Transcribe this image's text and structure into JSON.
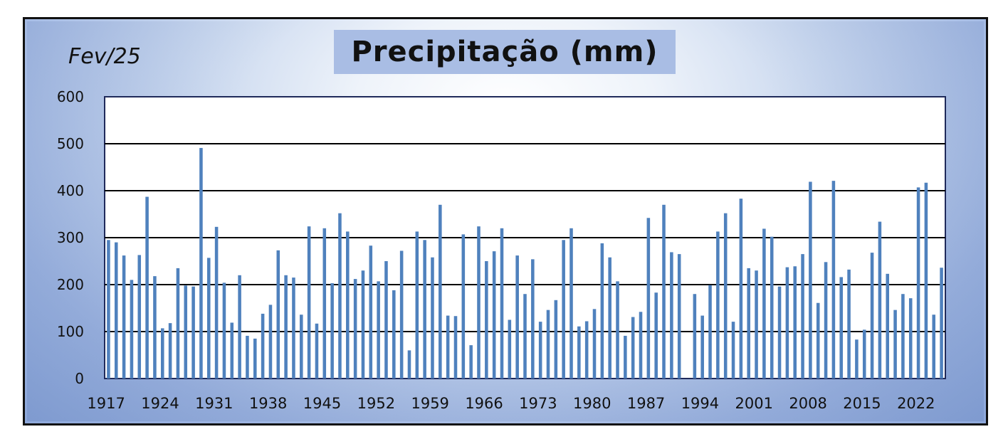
{
  "chart_data": {
    "type": "bar",
    "title": "Precipitação (mm)",
    "subtitle": "Fev/25",
    "xlabel": "",
    "ylabel": "",
    "ylim": [
      0,
      600
    ],
    "yticks": [
      0,
      100,
      200,
      300,
      400,
      500,
      600
    ],
    "grid": true,
    "legend": "none",
    "bar_color": "#4f81bd",
    "x_tick_labels": [
      "1917",
      "1924",
      "1931",
      "1938",
      "1945",
      "1952",
      "1959",
      "1966",
      "1973",
      "1980",
      "1987",
      "1994",
      "2001",
      "2008",
      "2015",
      "2022"
    ],
    "categories": [
      "1917",
      "1918",
      "1919",
      "1920",
      "1921",
      "1922",
      "1923",
      "1924",
      "1925",
      "1926",
      "1927",
      "1928",
      "1929",
      "1930",
      "1931",
      "1932",
      "1933",
      "1934",
      "1935",
      "1936",
      "1937",
      "1938",
      "1939",
      "1940",
      "1941",
      "1942",
      "1943",
      "1944",
      "1945",
      "1946",
      "1947",
      "1948",
      "1949",
      "1950",
      "1951",
      "1952",
      "1953",
      "1954",
      "1955",
      "1956",
      "1957",
      "1958",
      "1959",
      "1960",
      "1961",
      "1962",
      "1963",
      "1964",
      "1965",
      "1966",
      "1967",
      "1968",
      "1969",
      "1970",
      "1971",
      "1972",
      "1973",
      "1974",
      "1975",
      "1976",
      "1977",
      "1978",
      "1979",
      "1980",
      "1981",
      "1982",
      "1983",
      "1984",
      "1985",
      "1986",
      "1987",
      "1988",
      "1989",
      "1990",
      "1991",
      "1992",
      "1993",
      "1994",
      "1995",
      "1996",
      "1997",
      "1998",
      "1999",
      "2000",
      "2001",
      "2002",
      "2003",
      "2004",
      "2005",
      "2006",
      "2007",
      "2008",
      "2009",
      "2010",
      "2011",
      "2012",
      "2013",
      "2014",
      "2015",
      "2016",
      "2017",
      "2018",
      "2019",
      "2020",
      "2021",
      "2022",
      "2023",
      "2024",
      "2025"
    ],
    "values": [
      295,
      290,
      262,
      210,
      263,
      387,
      218,
      107,
      118,
      235,
      198,
      196,
      491,
      257,
      323,
      204,
      119,
      220,
      91,
      85,
      138,
      157,
      273,
      220,
      215,
      136,
      324,
      117,
      320,
      203,
      352,
      313,
      212,
      230,
      283,
      207,
      250,
      188,
      272,
      60,
      313,
      295,
      258,
      370,
      134,
      133,
      307,
      71,
      324,
      250,
      271,
      320,
      125,
      262,
      180,
      254,
      121,
      146,
      167,
      295,
      320,
      111,
      122,
      148,
      288,
      258,
      207,
      91,
      131,
      142,
      342,
      183,
      370,
      269,
      265,
      0,
      180,
      134,
      199,
      313,
      352,
      121,
      383,
      235,
      230,
      319,
      302,
      196,
      237,
      239,
      265,
      419,
      161,
      248,
      421,
      216,
      232,
      83,
      104,
      268,
      334,
      223,
      146,
      180,
      171,
      407,
      417,
      136,
      236
    ]
  }
}
